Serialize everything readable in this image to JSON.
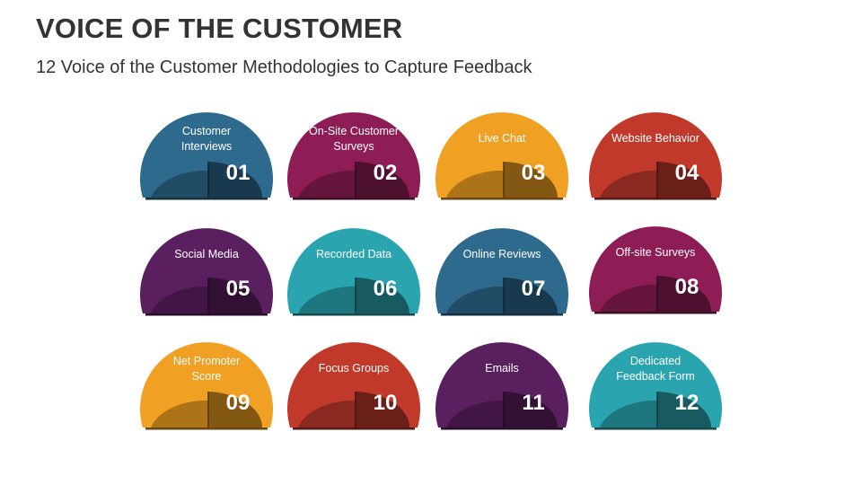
{
  "title": "VOICE OF THE CUSTOMER",
  "subtitle": "12 Voice of the Customer Methodologies to Capture Feedback",
  "items": [
    {
      "label": "Customer\nInterviews",
      "number": "01",
      "color": "#2e6a8e"
    },
    {
      "label": "On-Site Customer\nSurveys",
      "number": "02",
      "color": "#8e1d55"
    },
    {
      "label": "Live Chat",
      "number": "03",
      "color": "#f0a023"
    },
    {
      "label": "Website Behavior",
      "number": "04",
      "color": "#c0392b"
    },
    {
      "label": "Social Media",
      "number": "05",
      "color": "#5a1f5f"
    },
    {
      "label": "Recorded Data",
      "number": "06",
      "color": "#2aa5b0"
    },
    {
      "label": "Online Reviews",
      "number": "07",
      "color": "#2e6a8e"
    },
    {
      "label": "Off-site Surveys",
      "number": "08",
      "color": "#8e1d55"
    },
    {
      "label": "Net Promoter\nScore",
      "number": "09",
      "color": "#f0a023"
    },
    {
      "label": "Focus Groups",
      "number": "10",
      "color": "#c0392b"
    },
    {
      "label": "Emails",
      "number": "11",
      "color": "#5a1f5f"
    },
    {
      "label": "Dedicated\nFeedback Form",
      "number": "12",
      "color": "#2aa5b0"
    }
  ]
}
